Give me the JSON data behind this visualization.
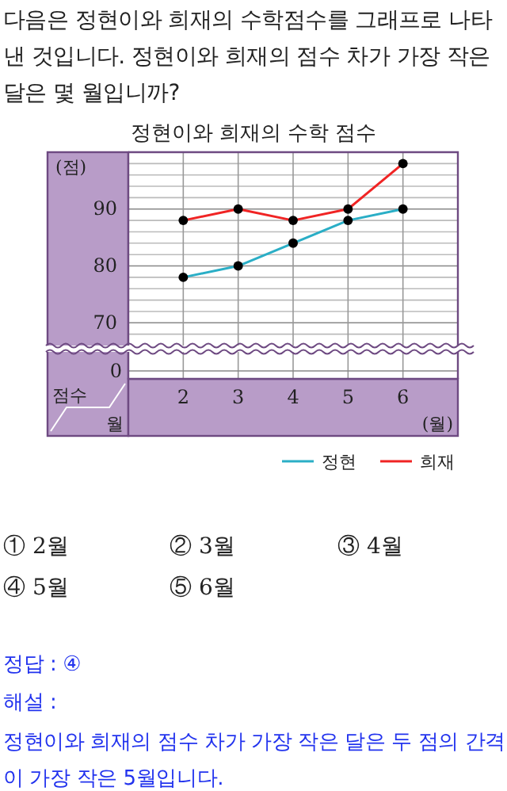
{
  "chart_data": {
    "type": "line",
    "title": "정현이와 희재의 수학 점수",
    "xlabel": "(월)",
    "ylabel": "(점)",
    "x": [
      2,
      3,
      4,
      5,
      6
    ],
    "xlim": [
      1,
      7
    ],
    "xticks": [
      2,
      3,
      4,
      5,
      6
    ],
    "ylim": [
      66,
      100
    ],
    "yticks": [
      {
        "value": 68,
        "label": null
      },
      70,
      {
        "value": 72,
        "label": null
      },
      {
        "value": 74,
        "label": null
      },
      {
        "value": 76,
        "label": null
      },
      {
        "value": 78,
        "label": null
      },
      80,
      {
        "value": 82,
        "label": null
      },
      {
        "value": 84,
        "label": null
      },
      {
        "value": 86,
        "label": null
      },
      {
        "value": 88,
        "label": null
      },
      90,
      {
        "value": 92,
        "label": null
      },
      {
        "value": 94,
        "label": null
      },
      {
        "value": 96,
        "label": null
      },
      {
        "value": 98,
        "label": null
      }
    ],
    "grid": true,
    "marker": "circle",
    "line_style": "solid",
    "legend": "bottom right",
    "series": [
      {
        "name": "정현",
        "color": "#2aaec6",
        "values": [
          78,
          80,
          84,
          88,
          90
        ]
      },
      {
        "name": "희재",
        "color": "#f02424",
        "values": [
          88,
          90,
          88,
          90,
          98
        ]
      }
    ],
    "annotations": [
      "다음은 정현이와 희재의 수학점수를 그래프로 나타낸 것입니다. 정현이와 희재의 점수 차가 가장 작은 달은 몇 월입니까?",
      "① 2월",
      "② 3월",
      "③ 4월",
      "④ 5월",
      "⑤ 6월",
      "정답 : ④",
      "해설 :",
      "정현이와 희재의 점수 차가 가장 작은 달은 두 점의 간격이 가장 작은 5월입니다.",
      "0",
      "점수",
      "월"
    ]
  }
}
